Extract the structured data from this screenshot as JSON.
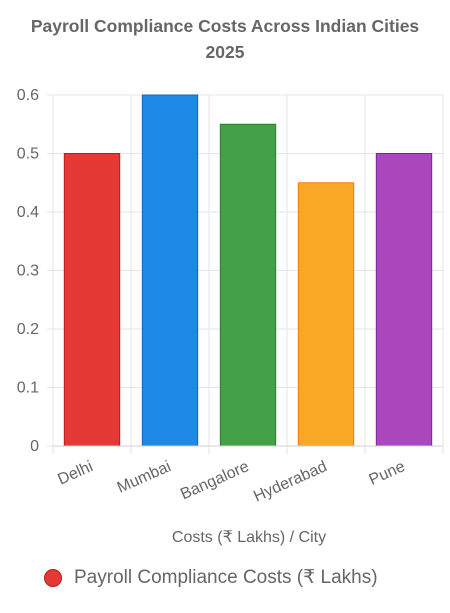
{
  "chart_data": {
    "type": "bar",
    "title_lines": [
      "Payroll Compliance Costs Across Indian Cities",
      "2025"
    ],
    "categories": [
      "Delhi",
      "Mumbai",
      "Bangalore",
      "Hyderabad",
      "Pune"
    ],
    "series": [
      {
        "name": "Payroll Compliance Costs (₹ Lakhs)",
        "values": [
          0.5,
          0.6,
          0.55,
          0.45,
          0.5
        ]
      }
    ],
    "colors": [
      "#e53935",
      "#1e88e5",
      "#43a047",
      "#f9a825",
      "#ab47bc"
    ],
    "border_colors": [
      "#b71c1c",
      "#1565c0",
      "#2e7d32",
      "#f57f17",
      "#7b1fa2"
    ],
    "xlabel": "Costs (₹ Lakhs) / City",
    "ylabel": "",
    "ylim": [
      0,
      0.6
    ],
    "yticks": [
      "0",
      "0.1",
      "0.2",
      "0.3",
      "0.4",
      "0.5",
      "0.6"
    ],
    "grid": true,
    "legend_position": "bottom"
  }
}
